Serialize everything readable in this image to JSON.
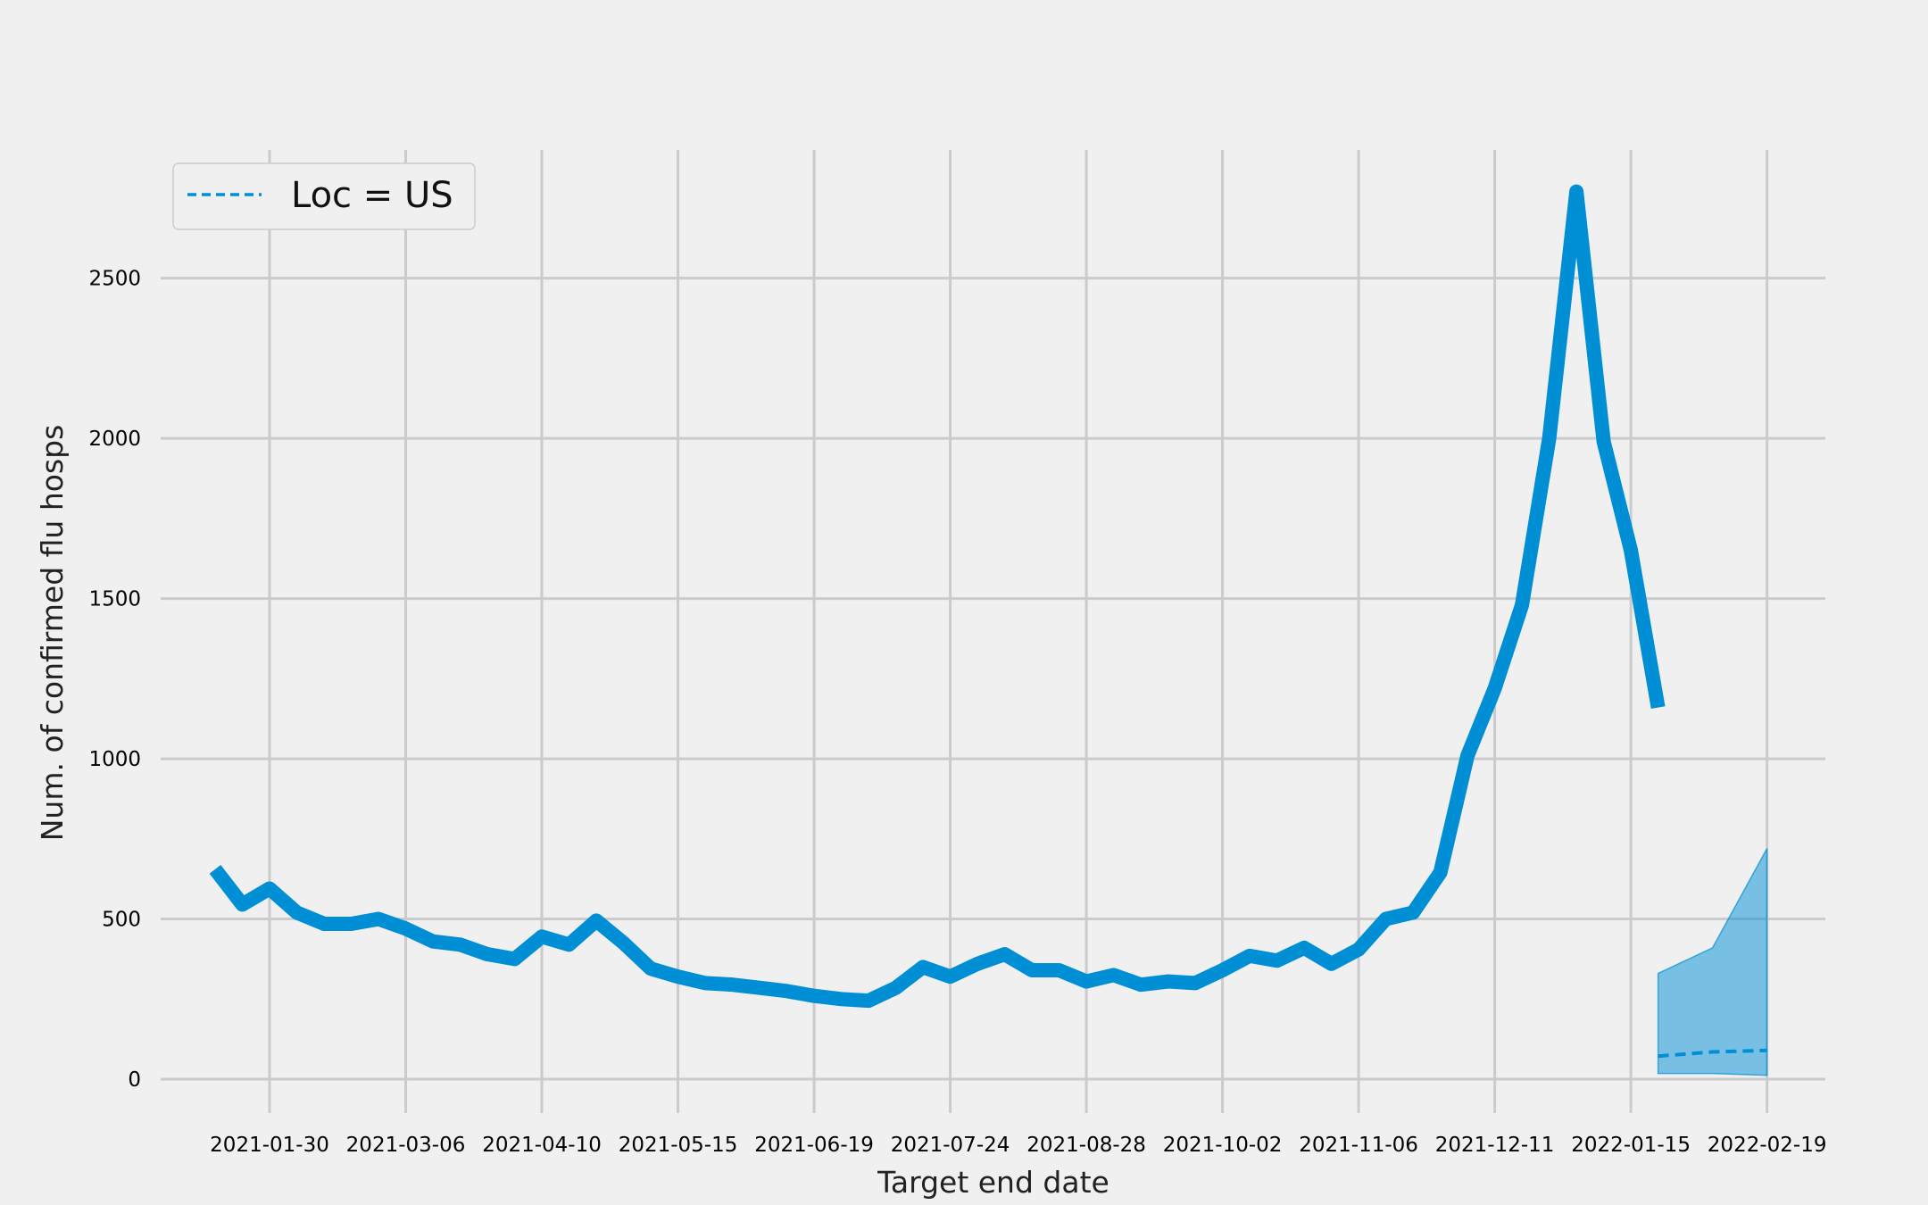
{
  "chart_data": {
    "type": "line",
    "xlabel": "Target end date",
    "ylabel": "Num. of confirmed flu hosps",
    "x_ticks": [
      "2021-01-30",
      "2021-03-06",
      "2021-04-10",
      "2021-05-15",
      "2021-06-19",
      "2021-07-24",
      "2021-08-28",
      "2021-10-02",
      "2021-11-06",
      "2021-12-11",
      "2022-01-15",
      "2022-02-19"
    ],
    "y_ticks": [
      0,
      500,
      1000,
      1500,
      2000,
      2500
    ],
    "ylim": [
      -50,
      2900
    ],
    "xlim": [
      "2021-01-02",
      "2022-03-06"
    ],
    "grid": true,
    "legend": {
      "position": "top-left",
      "entries": [
        "Loc = US"
      ]
    },
    "series": [
      {
        "style": "solid-thick",
        "color": "#008fd5",
        "points": [
          [
            "2021-01-16",
            655
          ],
          [
            "2021-01-23",
            545
          ],
          [
            "2021-01-30",
            595
          ],
          [
            "2021-02-06",
            520
          ],
          [
            "2021-02-13",
            485
          ],
          [
            "2021-02-20",
            485
          ],
          [
            "2021-02-27",
            500
          ],
          [
            "2021-03-06",
            470
          ],
          [
            "2021-03-13",
            430
          ],
          [
            "2021-03-20",
            420
          ],
          [
            "2021-03-27",
            390
          ],
          [
            "2021-04-03",
            375
          ],
          [
            "2021-04-10",
            445
          ],
          [
            "2021-04-17",
            420
          ],
          [
            "2021-04-24",
            495
          ],
          [
            "2021-05-01",
            425
          ],
          [
            "2021-05-08",
            345
          ],
          [
            "2021-05-15",
            320
          ],
          [
            "2021-05-22",
            300
          ],
          [
            "2021-05-29",
            295
          ],
          [
            "2021-06-05",
            285
          ],
          [
            "2021-06-12",
            275
          ],
          [
            "2021-06-19",
            260
          ],
          [
            "2021-06-26",
            250
          ],
          [
            "2021-07-03",
            245
          ],
          [
            "2021-07-10",
            285
          ],
          [
            "2021-07-17",
            350
          ],
          [
            "2021-07-24",
            320
          ],
          [
            "2021-07-31",
            360
          ],
          [
            "2021-08-07",
            390
          ],
          [
            "2021-08-14",
            340
          ],
          [
            "2021-08-21",
            340
          ],
          [
            "2021-08-28",
            305
          ],
          [
            "2021-09-04",
            325
          ],
          [
            "2021-09-11",
            295
          ],
          [
            "2021-09-18",
            305
          ],
          [
            "2021-09-25",
            300
          ],
          [
            "2021-10-02",
            340
          ],
          [
            "2021-10-09",
            385
          ],
          [
            "2021-10-16",
            370
          ],
          [
            "2021-10-23",
            410
          ],
          [
            "2021-10-30",
            360
          ],
          [
            "2021-11-06",
            405
          ],
          [
            "2021-11-13",
            500
          ],
          [
            "2021-11-20",
            520
          ],
          [
            "2021-11-27",
            645
          ],
          [
            "2021-12-04",
            1010
          ],
          [
            "2021-12-11",
            1220
          ],
          [
            "2021-12-18",
            1480
          ],
          [
            "2021-12-25",
            2000
          ],
          [
            "2022-01-01",
            2770
          ],
          [
            "2022-01-08",
            1990
          ],
          [
            "2022-01-15",
            1650
          ],
          [
            "2022-01-22",
            1160
          ]
        ]
      },
      {
        "name": "Loc = US",
        "style": "dashed",
        "color": "#008fd5",
        "points": [
          [
            "2022-01-22",
            72
          ],
          [
            "2022-02-05",
            85
          ],
          [
            "2022-02-19",
            90
          ]
        ],
        "band_lower": [
          [
            "2022-01-22",
            18
          ],
          [
            "2022-02-05",
            18
          ],
          [
            "2022-02-19",
            12
          ]
        ],
        "band_upper": [
          [
            "2022-01-22",
            330
          ],
          [
            "2022-02-05",
            410
          ],
          [
            "2022-02-19",
            720
          ]
        ],
        "band_color": "#008fd5",
        "band_opacity": 0.5
      }
    ]
  }
}
